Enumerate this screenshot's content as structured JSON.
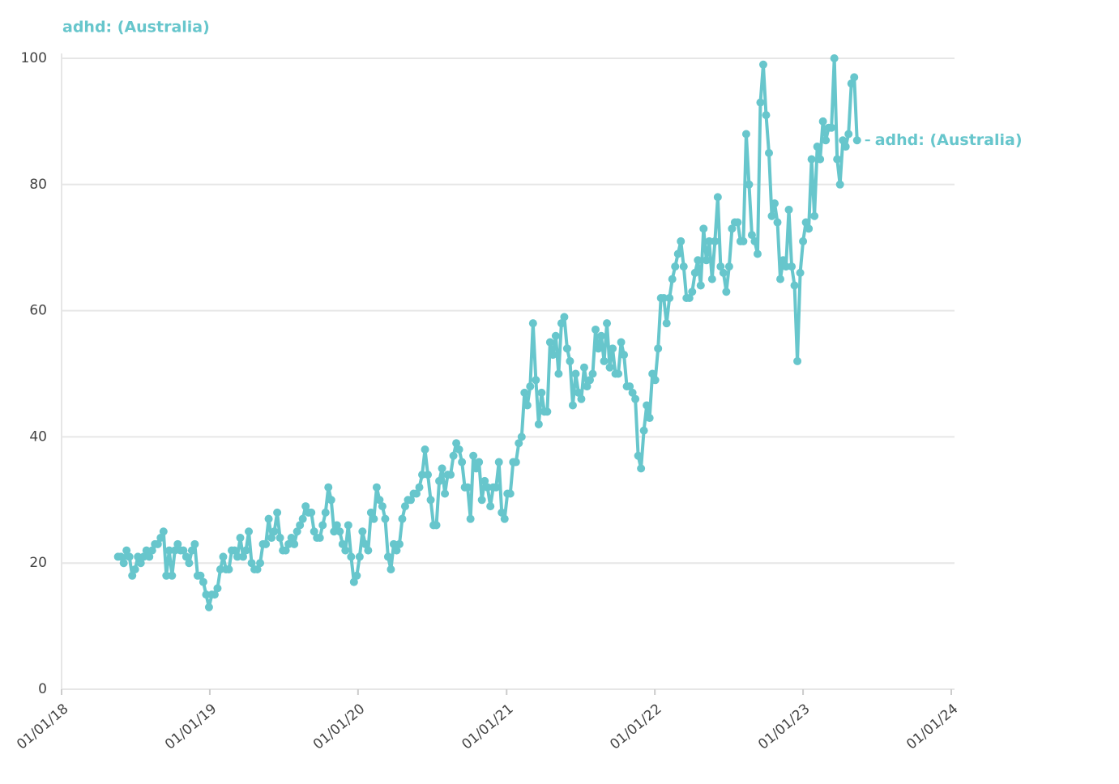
{
  "chart_data": {
    "type": "line",
    "title": "adhd: (Australia)",
    "x": [
      "2018-05-20",
      "2018-05-27",
      "2018-06-03",
      "2018-06-10",
      "2018-06-17",
      "2018-06-24",
      "2018-07-01",
      "2018-07-08",
      "2018-07-15",
      "2018-07-22",
      "2018-07-29",
      "2018-08-05",
      "2018-08-12",
      "2018-08-19",
      "2018-08-26",
      "2018-09-02",
      "2018-09-09",
      "2018-09-16",
      "2018-09-23",
      "2018-09-30",
      "2018-10-07",
      "2018-10-14",
      "2018-10-21",
      "2018-10-28",
      "2018-11-04",
      "2018-11-11",
      "2018-11-18",
      "2018-11-25",
      "2018-12-02",
      "2018-12-09",
      "2018-12-16",
      "2018-12-23",
      "2018-12-30",
      "2019-01-06",
      "2019-01-13",
      "2019-01-20",
      "2019-01-27",
      "2019-02-03",
      "2019-02-10",
      "2019-02-17",
      "2019-02-24",
      "2019-03-03",
      "2019-03-10",
      "2019-03-17",
      "2019-03-24",
      "2019-03-31",
      "2019-04-07",
      "2019-04-14",
      "2019-04-21",
      "2019-04-28",
      "2019-05-05",
      "2019-05-12",
      "2019-05-19",
      "2019-05-26",
      "2019-06-02",
      "2019-06-09",
      "2019-06-16",
      "2019-06-23",
      "2019-06-30",
      "2019-07-07",
      "2019-07-14",
      "2019-07-21",
      "2019-07-28",
      "2019-08-04",
      "2019-08-11",
      "2019-08-18",
      "2019-08-25",
      "2019-09-01",
      "2019-09-08",
      "2019-09-15",
      "2019-09-22",
      "2019-09-29",
      "2019-10-06",
      "2019-10-13",
      "2019-10-20",
      "2019-10-27",
      "2019-11-03",
      "2019-11-10",
      "2019-11-17",
      "2019-11-24",
      "2019-12-01",
      "2019-12-08",
      "2019-12-15",
      "2019-12-22",
      "2019-12-29",
      "2020-01-05",
      "2020-01-12",
      "2020-01-19",
      "2020-01-26",
      "2020-02-02",
      "2020-02-09",
      "2020-02-16",
      "2020-02-23",
      "2020-03-01",
      "2020-03-08",
      "2020-03-15",
      "2020-03-22",
      "2020-03-29",
      "2020-04-05",
      "2020-04-12",
      "2020-04-19",
      "2020-04-26",
      "2020-05-03",
      "2020-05-10",
      "2020-05-17",
      "2020-05-24",
      "2020-05-31",
      "2020-06-07",
      "2020-06-14",
      "2020-06-21",
      "2020-06-28",
      "2020-07-05",
      "2020-07-12",
      "2020-07-19",
      "2020-07-26",
      "2020-08-02",
      "2020-08-09",
      "2020-08-16",
      "2020-08-23",
      "2020-08-30",
      "2020-09-06",
      "2020-09-13",
      "2020-09-20",
      "2020-09-27",
      "2020-10-04",
      "2020-10-11",
      "2020-10-18",
      "2020-10-25",
      "2020-11-01",
      "2020-11-08",
      "2020-11-15",
      "2020-11-22",
      "2020-11-29",
      "2020-12-06",
      "2020-12-13",
      "2020-12-20",
      "2020-12-27",
      "2021-01-03",
      "2021-01-10",
      "2021-01-17",
      "2021-01-24",
      "2021-01-31",
      "2021-02-07",
      "2021-02-14",
      "2021-02-21",
      "2021-02-28",
      "2021-03-07",
      "2021-03-14",
      "2021-03-21",
      "2021-03-28",
      "2021-04-04",
      "2021-04-11",
      "2021-04-18",
      "2021-04-25",
      "2021-05-02",
      "2021-05-09",
      "2021-05-16",
      "2021-05-23",
      "2021-05-30",
      "2021-06-06",
      "2021-06-13",
      "2021-06-20",
      "2021-06-27",
      "2021-07-04",
      "2021-07-11",
      "2021-07-18",
      "2021-07-25",
      "2021-08-01",
      "2021-08-08",
      "2021-08-15",
      "2021-08-22",
      "2021-08-29",
      "2021-09-05",
      "2021-09-12",
      "2021-09-19",
      "2021-09-26",
      "2021-10-03",
      "2021-10-10",
      "2021-10-17",
      "2021-10-24",
      "2021-10-31",
      "2021-11-07",
      "2021-11-14",
      "2021-11-21",
      "2021-11-28",
      "2021-12-05",
      "2021-12-12",
      "2021-12-19",
      "2021-12-26",
      "2022-01-02",
      "2022-01-09",
      "2022-01-16",
      "2022-01-23",
      "2022-01-30",
      "2022-02-06",
      "2022-02-13",
      "2022-02-20",
      "2022-02-27",
      "2022-03-06",
      "2022-03-13",
      "2022-03-20",
      "2022-03-27",
      "2022-04-03",
      "2022-04-10",
      "2022-04-17",
      "2022-04-24",
      "2022-05-01",
      "2022-05-08",
      "2022-05-15",
      "2022-05-22",
      "2022-05-29",
      "2022-06-05",
      "2022-06-12",
      "2022-06-19",
      "2022-06-26",
      "2022-07-03",
      "2022-07-10",
      "2022-07-17",
      "2022-07-24",
      "2022-07-31",
      "2022-08-07",
      "2022-08-14",
      "2022-08-21",
      "2022-08-28",
      "2022-09-04",
      "2022-09-11",
      "2022-09-18",
      "2022-09-25",
      "2022-10-02",
      "2022-10-09",
      "2022-10-16",
      "2022-10-23",
      "2022-10-30",
      "2022-11-06",
      "2022-11-13",
      "2022-11-20",
      "2022-11-27",
      "2022-12-04",
      "2022-12-11",
      "2022-12-18",
      "2022-12-25",
      "2023-01-01",
      "2023-01-08",
      "2023-01-15",
      "2023-01-22",
      "2023-01-29",
      "2023-02-05",
      "2023-02-12",
      "2023-02-19",
      "2023-02-26",
      "2023-03-05",
      "2023-03-12",
      "2023-03-19",
      "2023-03-26",
      "2023-04-02",
      "2023-04-09",
      "2023-04-16",
      "2023-04-23",
      "2023-04-30",
      "2023-05-07",
      "2023-05-14"
    ],
    "series": [
      {
        "name": "adhd: (Australia)",
        "color": "#67c6cc",
        "values": [
          21,
          21,
          20,
          22,
          21,
          18,
          19,
          21,
          20,
          21,
          22,
          21,
          22,
          23,
          23,
          24,
          25,
          18,
          22,
          18,
          22,
          23,
          22,
          22,
          21,
          20,
          22,
          23,
          18,
          18,
          17,
          15,
          13,
          15,
          15,
          16,
          19,
          21,
          19,
          19,
          22,
          22,
          21,
          24,
          21,
          22,
          25,
          20,
          19,
          19,
          20,
          23,
          23,
          27,
          24,
          25,
          28,
          24,
          22,
          22,
          23,
          24,
          23,
          25,
          26,
          27,
          29,
          28,
          28,
          25,
          24,
          24,
          26,
          28,
          32,
          30,
          25,
          26,
          25,
          23,
          22,
          26,
          21,
          17,
          18,
          21,
          25,
          23,
          22,
          28,
          27,
          32,
          30,
          29,
          27,
          21,
          19,
          23,
          22,
          23,
          27,
          29,
          30,
          30,
          31,
          31,
          32,
          34,
          38,
          34,
          30,
          26,
          26,
          33,
          35,
          31,
          34,
          34,
          37,
          39,
          38,
          36,
          32,
          32,
          27,
          37,
          35,
          36,
          30,
          33,
          32,
          29,
          32,
          32,
          36,
          28,
          27,
          31,
          31,
          36,
          36,
          39,
          40,
          47,
          45,
          48,
          58,
          49,
          42,
          47,
          44,
          44,
          55,
          53,
          56,
          50,
          58,
          59,
          54,
          52,
          45,
          50,
          47,
          46,
          51,
          48,
          49,
          50,
          57,
          54,
          56,
          52,
          58,
          51,
          54,
          50,
          50,
          55,
          53,
          48,
          48,
          47,
          46,
          37,
          35,
          41,
          45,
          43,
          50,
          49,
          54,
          62,
          62,
          58,
          62,
          65,
          67,
          69,
          71,
          67,
          62,
          62,
          63,
          66,
          68,
          64,
          73,
          68,
          71,
          65,
          71,
          78,
          67,
          66,
          63,
          67,
          73,
          74,
          74,
          71,
          71,
          88,
          80,
          72,
          71,
          69,
          93,
          99,
          91,
          85,
          75,
          77,
          74,
          65,
          68,
          67,
          76,
          67,
          64,
          52,
          66,
          71,
          74,
          73,
          84,
          75,
          86,
          84,
          90,
          87,
          89,
          89,
          100,
          84,
          80,
          87,
          86,
          88,
          96,
          97,
          87
        ]
      }
    ],
    "xlim": [
      "2018-01-01",
      "2024-01-01"
    ],
    "xticks": [
      {
        "value": "2018-01-01",
        "label": "01/01/18"
      },
      {
        "value": "2019-01-01",
        "label": "01/01/19"
      },
      {
        "value": "2020-01-01",
        "label": "01/01/20"
      },
      {
        "value": "2021-01-01",
        "label": "01/01/21"
      },
      {
        "value": "2022-01-01",
        "label": "01/01/22"
      },
      {
        "value": "2023-01-01",
        "label": "01/01/23"
      },
      {
        "value": "2024-01-01",
        "label": "01/01/24"
      }
    ],
    "ylim": [
      0,
      100
    ],
    "yticks": [
      0,
      20,
      40,
      60,
      80,
      100
    ],
    "grid": true
  }
}
